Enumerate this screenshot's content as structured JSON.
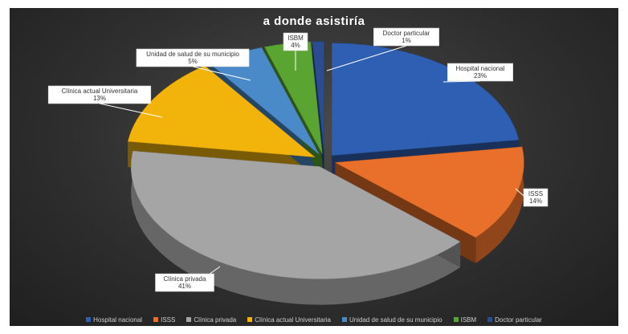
{
  "chart_data": {
    "type": "pie",
    "title": "a donde asistiría",
    "style": "3d-exploded",
    "legend_position": "bottom",
    "slices": [
      {
        "name": "Hospital nacional",
        "value": 23,
        "label": "23%",
        "color": "#2f5fb3"
      },
      {
        "name": "ISSS",
        "value": 14,
        "label": "14%",
        "color": "#e8702a"
      },
      {
        "name": "Clínica privada",
        "value": 41,
        "label": "41%",
        "color": "#a5a5a5"
      },
      {
        "name": "Clínica actual Universitaria",
        "value": 13,
        "label": "13%",
        "color": "#f2b40b"
      },
      {
        "name": "Unidad de salud de su municipio",
        "value": 5,
        "label": "5%",
        "color": "#4a8ac9"
      },
      {
        "name": "ISBM",
        "value": 4,
        "label": "4%",
        "color": "#5aa532"
      },
      {
        "name": "Doctor particular",
        "value": 1,
        "label": "1%",
        "color": "#2b4c90"
      }
    ],
    "legend": [
      "Hospital nacional",
      "ISSS",
      "Clínica privada",
      "Clínica actual Universitaria",
      "Unidad de salud de su municipio",
      "ISBM",
      "Doctor particular"
    ]
  }
}
